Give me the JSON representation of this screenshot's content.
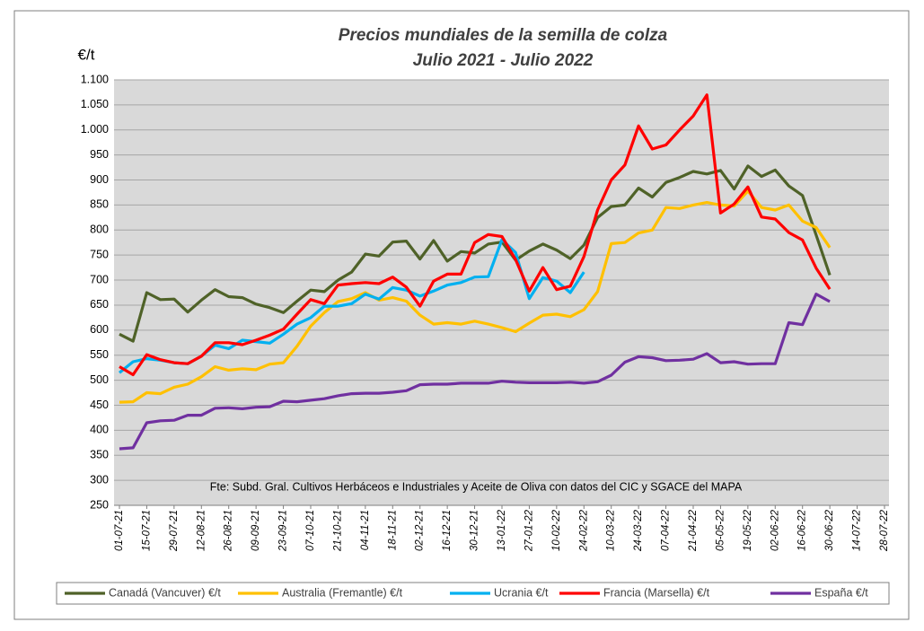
{
  "chart_data": {
    "type": "line",
    "title": "Precios mundiales de la semilla de colza",
    "subtitle": "Julio 2021 - Julio 2022",
    "y_label": "€/t",
    "annotation": "Fte: Subd. Gral. Cultivos Herbáceos e Industriales y Aceite de Oliva con datos del CIC y SGACE del MAPA",
    "x": [
      "01-07-21",
      "08-07-21",
      "15-07-21",
      "22-07-21",
      "29-07-21",
      "05-08-21",
      "12-08-21",
      "19-08-21",
      "26-08-21",
      "02-09-21",
      "09-09-21",
      "16-09-21",
      "23-09-21",
      "30-09-21",
      "07-10-21",
      "14-10-21",
      "21-10-21",
      "28-10-21",
      "04-11-21",
      "11-11-21",
      "18-11-21",
      "25-11-21",
      "02-12-21",
      "09-12-21",
      "16-12-21",
      "23-12-21",
      "30-12-21",
      "06-01-22",
      "13-01-22",
      "20-01-22",
      "27-01-22",
      "03-02-22",
      "10-02-22",
      "17-02-22",
      "24-02-22",
      "03-03-22",
      "10-03-22",
      "17-03-22",
      "24-03-22",
      "31-03-22",
      "07-04-22",
      "14-04-22",
      "21-04-22",
      "28-04-22",
      "05-05-22",
      "12-05-22",
      "19-05-22",
      "26-05-22",
      "02-06-22",
      "09-06-22",
      "16-06-22",
      "23-06-22",
      "30-06-22"
    ],
    "xlim": [
      "01-07-21",
      "28-07-22"
    ],
    "xticks": [
      "01-07-21",
      "15-07-21",
      "29-07-21",
      "12-08-21",
      "26-08-21",
      "09-09-21",
      "23-09-21",
      "07-10-21",
      "21-10-21",
      "04-11-21",
      "18-11-21",
      "02-12-21",
      "16-12-21",
      "30-12-21",
      "13-01-22",
      "27-01-22",
      "10-02-22",
      "24-02-22",
      "10-03-22",
      "24-03-22",
      "07-04-22",
      "21-04-22",
      "05-05-22",
      "19-05-22",
      "02-06-22",
      "16-06-22",
      "30-06-22",
      "14-07-22",
      "28-07-22"
    ],
    "ylim": [
      250,
      1100
    ],
    "yticks": [
      250,
      300,
      350,
      400,
      450,
      500,
      550,
      600,
      650,
      700,
      750,
      800,
      850,
      900,
      950,
      {
        "value": 1000,
        "label": "1.000"
      },
      {
        "value": 1050,
        "label": "1.050"
      },
      {
        "value": 1100,
        "label": "1.100"
      }
    ],
    "grid": true,
    "legend": "bottom",
    "series": [
      {
        "name": "Canadá (Vancuver) €/t",
        "color": "#4f6228",
        "values": [
          592,
          578,
          675,
          661,
          662,
          636,
          660,
          681,
          667,
          665,
          652,
          645,
          635,
          658,
          680,
          677,
          700,
          716,
          752,
          748,
          776,
          778,
          742,
          779,
          738,
          757,
          754,
          772,
          776,
          740,
          758,
          772,
          760,
          743,
          770,
          825,
          847,
          850,
          884,
          866,
          895,
          905,
          917,
          912,
          919,
          882,
          928,
          907,
          920,
          888,
          869,
          790,
          710
        ]
      },
      {
        "name": "Australia (Fremantle) €/t",
        "color": "#ffc000",
        "values": [
          456,
          457,
          475,
          473,
          486,
          492,
          507,
          527,
          520,
          523,
          521,
          532,
          535,
          568,
          608,
          635,
          657,
          663,
          675,
          660,
          665,
          658,
          630,
          612,
          615,
          612,
          618,
          612,
          605,
          597,
          614,
          630,
          632,
          627,
          641,
          677,
          773,
          775,
          794,
          800,
          845,
          843,
          850,
          855,
          850,
          848,
          878,
          845,
          840,
          850,
          818,
          805,
          765
        ]
      },
      {
        "name": "Ucrania €/t",
        "color": "#00b0f0",
        "values": [
          515,
          537,
          543,
          540,
          535,
          533,
          548,
          570,
          563,
          580,
          577,
          574,
          592,
          612,
          625,
          648,
          648,
          653,
          672,
          662,
          685,
          680,
          668,
          678,
          690,
          695,
          706,
          707,
          781,
          755,
          663,
          705,
          698,
          675,
          716,
          null,
          null,
          null,
          null,
          null,
          null,
          null,
          null,
          null,
          null,
          null,
          null,
          null,
          null,
          null,
          null,
          null,
          null
        ]
      },
      {
        "name": "Francia (Marsella) €/t",
        "color": "#ff0000",
        "values": [
          527,
          511,
          551,
          541,
          535,
          533,
          548,
          575,
          575,
          571,
          580,
          590,
          602,
          632,
          661,
          653,
          690,
          693,
          695,
          693,
          706,
          686,
          648,
          698,
          712,
          712,
          775,
          791,
          787,
          741,
          678,
          725,
          681,
          688,
          747,
          840,
          900,
          930,
          1008,
          962,
          970,
          1000,
          1028,
          1070,
          834,
          852,
          886,
          826,
          822,
          795,
          780,
          724,
          682
        ]
      },
      {
        "name": "España €/t",
        "color": "#7030a0",
        "values": [
          363,
          365,
          415,
          419,
          420,
          430,
          430,
          444,
          445,
          443,
          446,
          447,
          458,
          457,
          460,
          463,
          469,
          473,
          474,
          474,
          476,
          479,
          491,
          492,
          492,
          494,
          494,
          494,
          498,
          496,
          495,
          495,
          495,
          496,
          494,
          497,
          510,
          536,
          547,
          545,
          539,
          540,
          542,
          553,
          535,
          537,
          532,
          533,
          533,
          615,
          611,
          672,
          657
        ]
      }
    ]
  }
}
